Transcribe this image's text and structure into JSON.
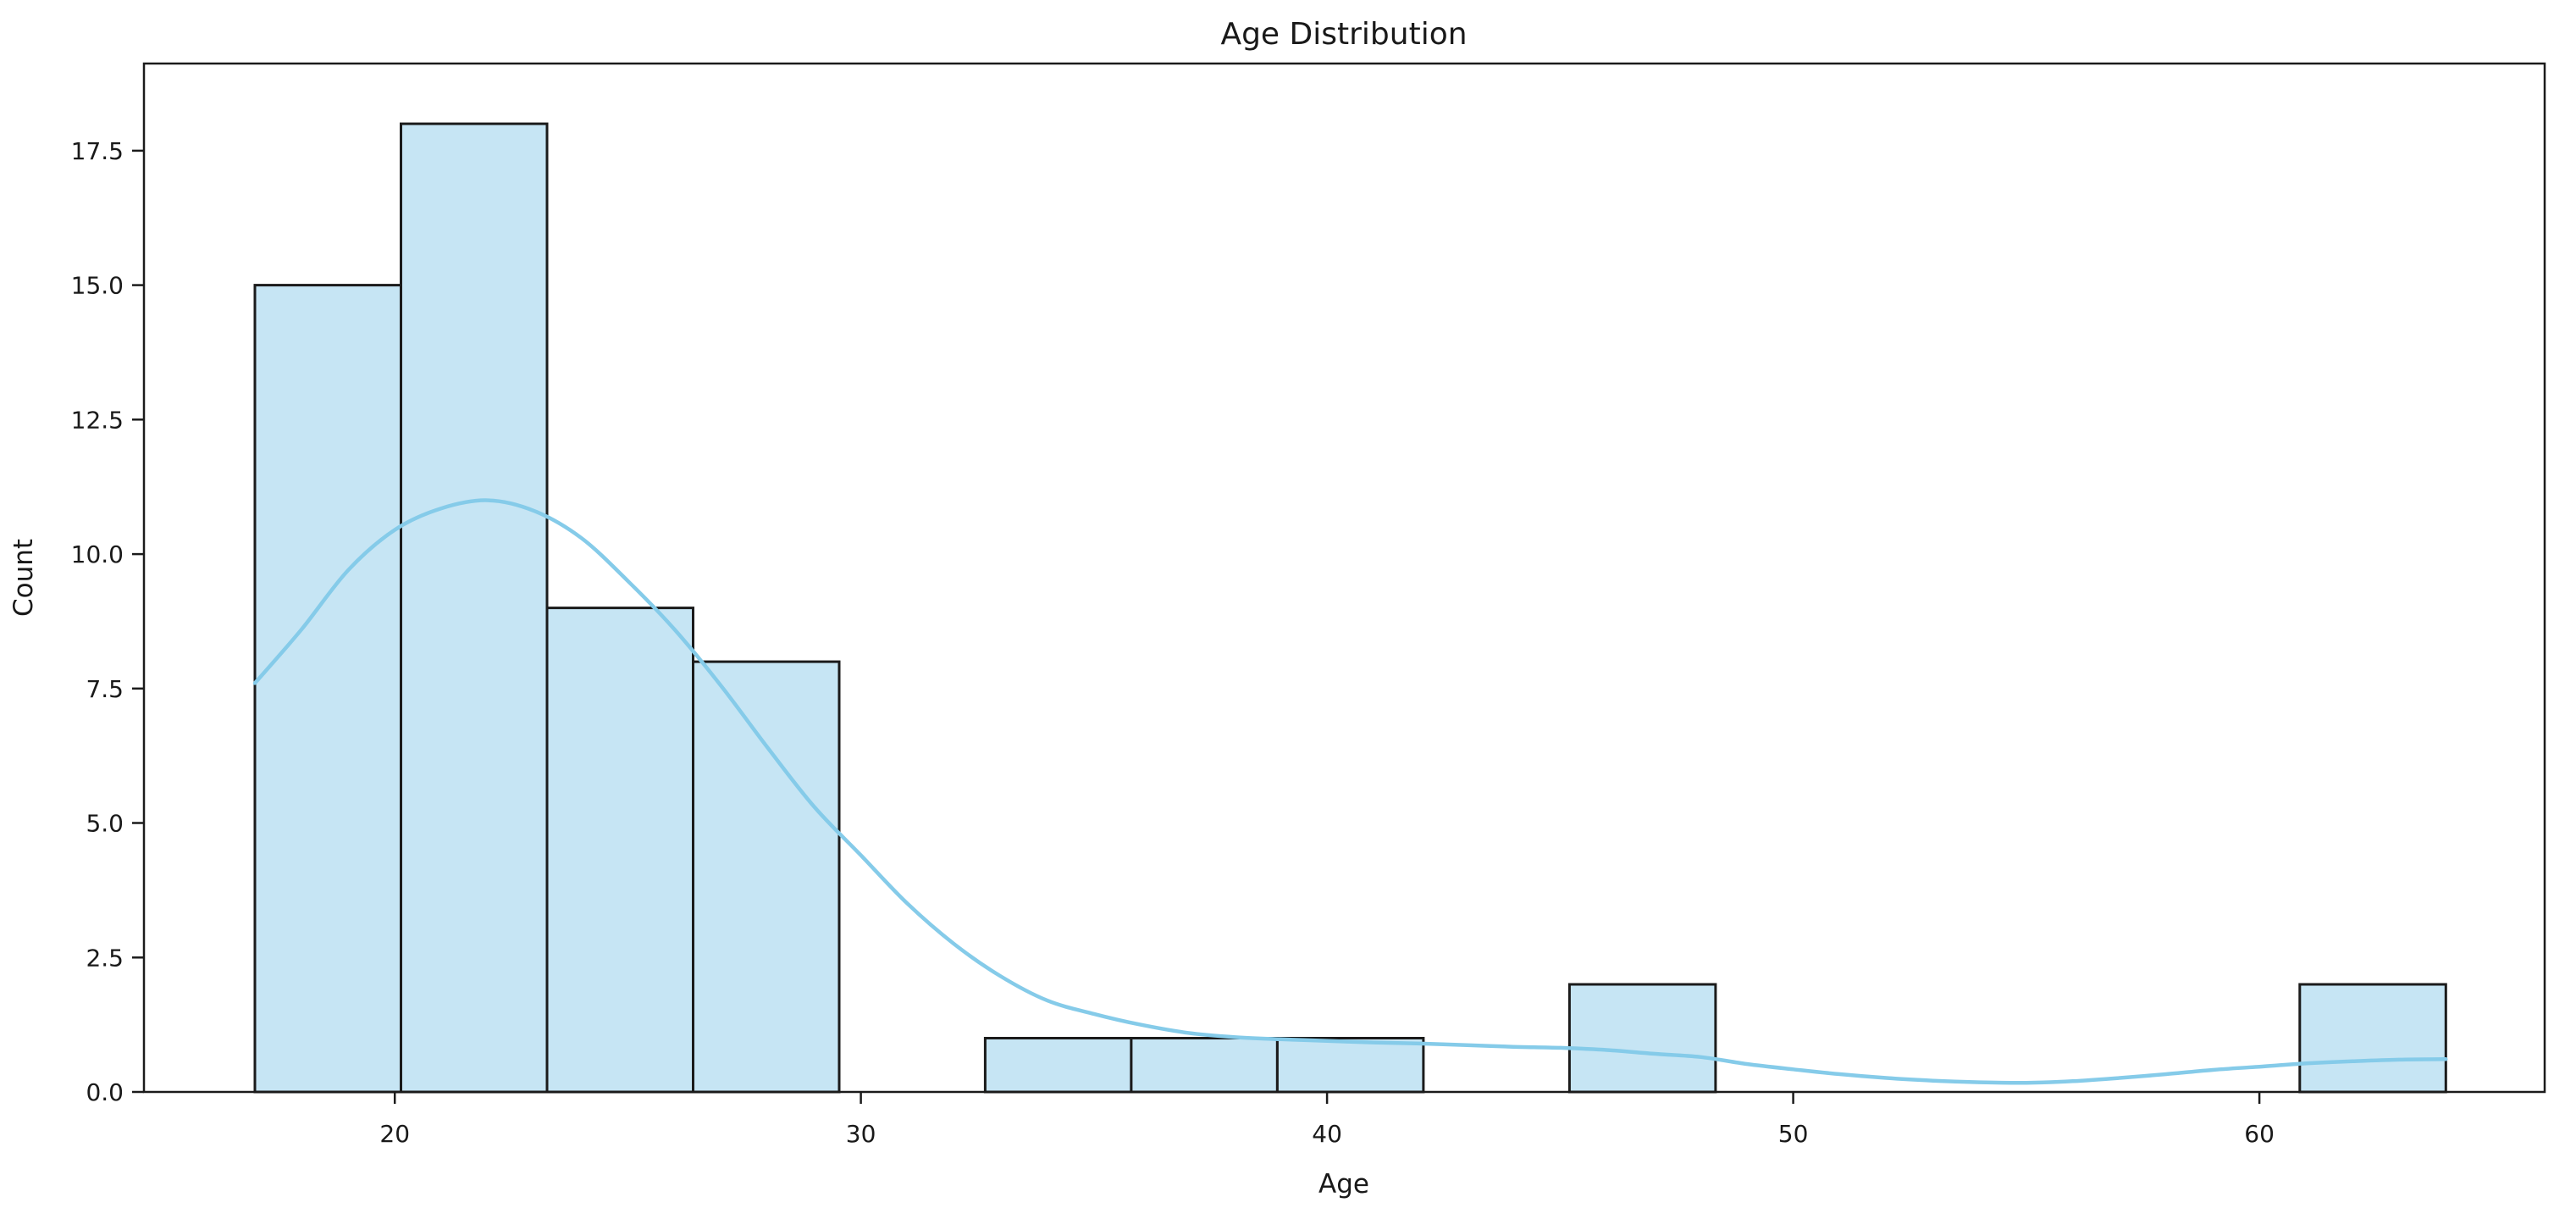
{
  "chart_data": {
    "type": "histogram+kde",
    "title": "Age Distribution",
    "xlabel": "Age",
    "ylabel": "Count",
    "xlim": [
      14.62,
      66.12
    ],
    "ylim": [
      0,
      19.12
    ],
    "x_ticks": [
      20,
      30,
      40,
      50,
      60
    ],
    "y_ticks": [
      0.0,
      2.5,
      5.0,
      7.5,
      10.0,
      12.5,
      15.0,
      17.5
    ],
    "grid": false,
    "legend": null,
    "histogram": {
      "bin_start": 17.0,
      "bin_width": 3.1333,
      "counts": [
        15,
        18,
        9,
        8,
        0,
        1,
        1,
        1,
        0,
        2,
        0,
        0,
        0,
        0,
        2
      ]
    },
    "kde_points": [
      [
        17,
        7.6
      ],
      [
        18,
        8.6
      ],
      [
        19,
        9.7
      ],
      [
        20,
        10.45
      ],
      [
        21,
        10.85
      ],
      [
        22,
        11.0
      ],
      [
        23,
        10.8
      ],
      [
        24,
        10.3
      ],
      [
        25,
        9.5
      ],
      [
        26,
        8.6
      ],
      [
        27,
        7.55
      ],
      [
        28,
        6.4
      ],
      [
        29,
        5.3
      ],
      [
        30,
        4.4
      ],
      [
        31,
        3.5
      ],
      [
        32,
        2.75
      ],
      [
        33,
        2.15
      ],
      [
        34,
        1.7
      ],
      [
        35,
        1.45
      ],
      [
        36,
        1.25
      ],
      [
        37,
        1.1
      ],
      [
        38,
        1.02
      ],
      [
        39,
        0.98
      ],
      [
        40,
        0.95
      ],
      [
        41,
        0.92
      ],
      [
        42,
        0.9
      ],
      [
        43,
        0.87
      ],
      [
        44,
        0.84
      ],
      [
        45,
        0.82
      ],
      [
        46,
        0.78
      ],
      [
        47,
        0.71
      ],
      [
        48,
        0.65
      ],
      [
        49,
        0.52
      ],
      [
        50,
        0.42
      ],
      [
        51,
        0.33
      ],
      [
        52,
        0.26
      ],
      [
        53,
        0.21
      ],
      [
        54,
        0.18
      ],
      [
        55,
        0.17
      ],
      [
        56,
        0.2
      ],
      [
        57,
        0.26
      ],
      [
        58,
        0.33
      ],
      [
        59,
        0.41
      ],
      [
        60,
        0.47
      ],
      [
        61,
        0.53
      ],
      [
        62,
        0.57
      ],
      [
        63,
        0.6
      ],
      [
        64,
        0.61
      ]
    ],
    "colors": {
      "bar_fill": "#c6e5f4",
      "bar_edge": "#1b1b1b",
      "kde_line": "#85cbe9",
      "text": "#191919",
      "spine": "#1b1b1b"
    }
  }
}
